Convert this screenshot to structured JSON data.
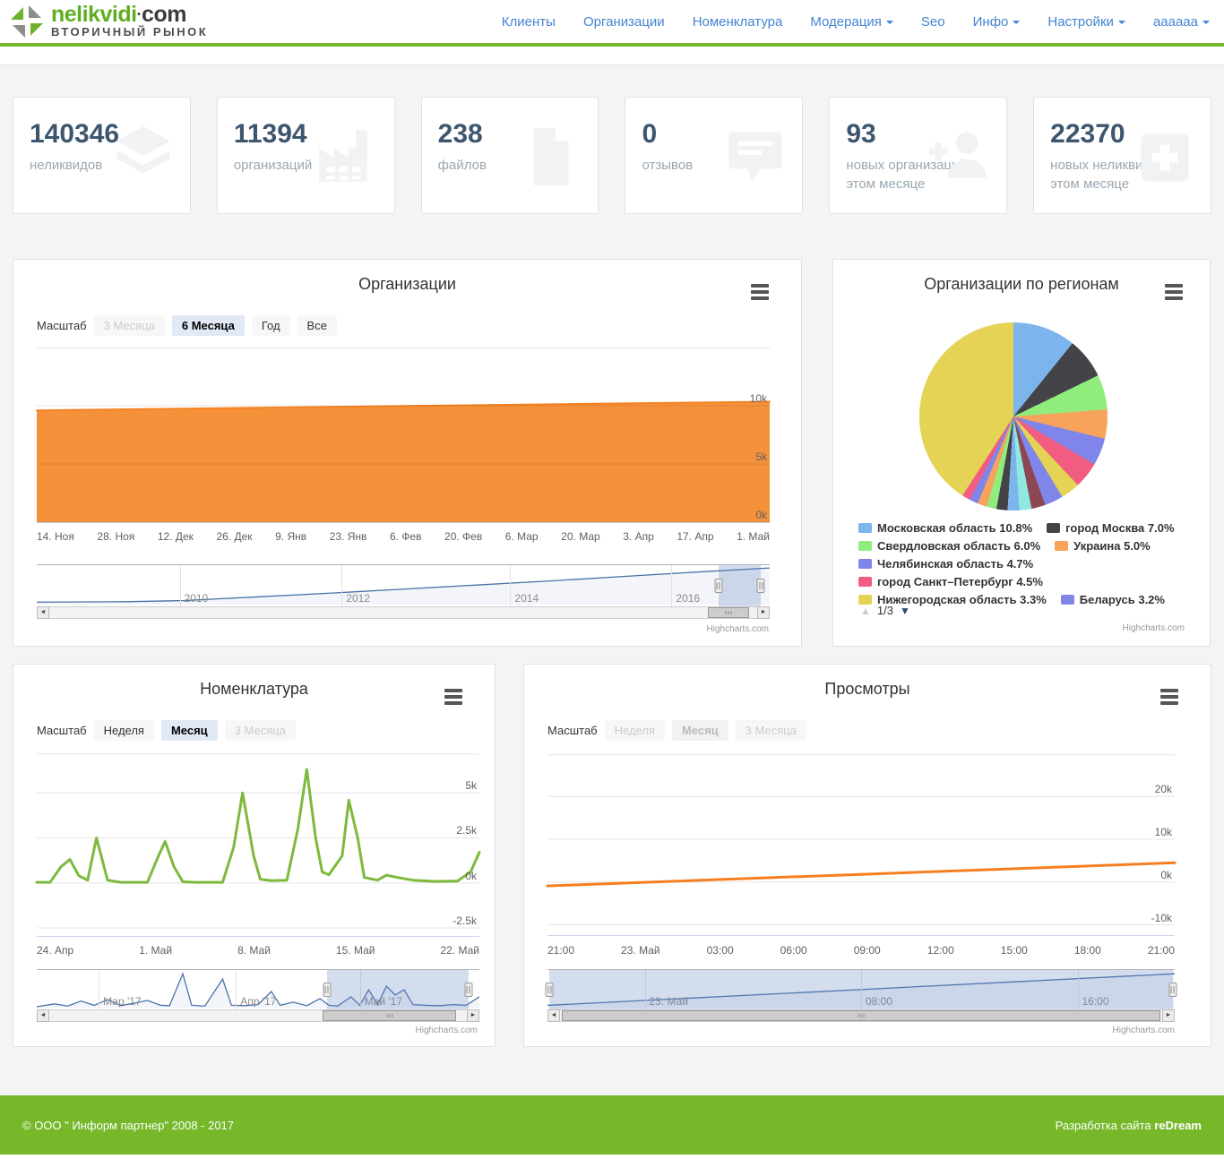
{
  "header": {
    "logo": {
      "brand_green": "nelikvidi",
      "brand_sep": "·",
      "brand_dark": "com",
      "tagline": "ВТОРИЧНЫЙ РЫНОК"
    },
    "nav": [
      {
        "label": "Клиенты",
        "dropdown": false
      },
      {
        "label": "Организации",
        "dropdown": false
      },
      {
        "label": "Номенклатура",
        "dropdown": false
      },
      {
        "label": "Модерация",
        "dropdown": true
      },
      {
        "label": "Seo",
        "dropdown": false
      },
      {
        "label": "Инфо",
        "dropdown": true
      },
      {
        "label": "Настройки",
        "dropdown": true
      },
      {
        "label": "aaaaaa",
        "dropdown": true
      }
    ]
  },
  "stats": [
    {
      "value": "140346",
      "label": "неликвидов",
      "icon": "layers-icon"
    },
    {
      "value": "11394",
      "label": "организаций",
      "icon": "factory-icon"
    },
    {
      "value": "238",
      "label": "файлов",
      "icon": "file-icon"
    },
    {
      "value": "0",
      "label": "отзывов",
      "icon": "comment-icon"
    },
    {
      "value": "93",
      "label": "новых организаций в этом месяце",
      "icon": "user-plus-icon"
    },
    {
      "value": "22370",
      "label": "новых неликвидов в этом месяце",
      "icon": "add-box-icon"
    }
  ],
  "chart_data": [
    {
      "id": "organizations",
      "type": "area",
      "title": "Организации",
      "color": "#f58220",
      "scale_label": "Масштаб",
      "range_buttons": [
        {
          "label": "3 Месяца",
          "state": "disabled"
        },
        {
          "label": "6 Месяца",
          "state": "selected"
        },
        {
          "label": "Год",
          "state": "normal"
        },
        {
          "label": "Все",
          "state": "normal"
        }
      ],
      "x_labels": [
        "14. Ноя",
        "28. Ноя",
        "12. Дек",
        "26. Дек",
        "9. Янв",
        "23. Янв",
        "6. Фев",
        "20. Фев",
        "6. Мар",
        "20. Мар",
        "3. Апр",
        "17. Апр",
        "1. Май"
      ],
      "y_ticks": [
        {
          "v": 0,
          "l": "0k"
        },
        {
          "v": 5000,
          "l": "5k"
        },
        {
          "v": 10000,
          "l": "10k"
        }
      ],
      "y_range": [
        0,
        15000
      ],
      "points": [
        [
          0,
          9600
        ],
        [
          0.2,
          9750
        ],
        [
          0.4,
          9900
        ],
        [
          0.6,
          10050
        ],
        [
          0.8,
          10200
        ],
        [
          1,
          10350
        ]
      ],
      "navigator": {
        "labels": [
          {
            "text": "2010",
            "pos": 0.195
          },
          {
            "text": "2012",
            "pos": 0.416
          },
          {
            "text": "2014",
            "pos": 0.646
          },
          {
            "text": "2016",
            "pos": 0.866
          }
        ],
        "points": [
          [
            0,
            0.06
          ],
          [
            0.12,
            0.07
          ],
          [
            0.2,
            0.1
          ],
          [
            0.3,
            0.2
          ],
          [
            0.4,
            0.3
          ],
          [
            0.5,
            0.41
          ],
          [
            0.6,
            0.52
          ],
          [
            0.7,
            0.63
          ],
          [
            0.8,
            0.75
          ],
          [
            0.9,
            0.87
          ],
          [
            1,
            0.98
          ]
        ],
        "select": [
          0.93,
          0.988
        ]
      },
      "credit": "Highcharts.com"
    },
    {
      "id": "regions",
      "type": "pie",
      "title": "Организации по регионам",
      "pagination": "1/3",
      "slices": [
        {
          "label": "Московская область",
          "value": 10.8,
          "color": "#7cb5ec"
        },
        {
          "label": "город Москва",
          "value": 7.0,
          "color": "#434348"
        },
        {
          "label": "Свердловская область",
          "value": 6.0,
          "color": "#90ed7d"
        },
        {
          "label": "Украина",
          "value": 5.0,
          "color": "#f7a35c"
        },
        {
          "label": "Челябинская область",
          "value": 4.7,
          "color": "#8085e9"
        },
        {
          "label": "город Санкт–Петербург",
          "value": 4.5,
          "color": "#f15c80"
        },
        {
          "label": "Нижегородская область",
          "value": 3.3,
          "color": "#e4d354"
        },
        {
          "label": "Беларусь",
          "value": 3.2,
          "color": "#8085e8"
        },
        {
          "value": 2.4,
          "color": "#8d4653"
        },
        {
          "value": 2.1,
          "color": "#91e8e1"
        },
        {
          "value": 2.0,
          "color": "#7cb5ec"
        },
        {
          "value": 1.9,
          "color": "#434348"
        },
        {
          "value": 1.7,
          "color": "#90ed7d"
        },
        {
          "value": 1.6,
          "color": "#f7a35c"
        },
        {
          "value": 1.5,
          "color": "#8085e9"
        },
        {
          "value": 1.4,
          "color": "#f15c80"
        },
        {
          "value": 40.9,
          "color": "#e4d354"
        }
      ],
      "legend_rows": [
        [
          {
            "label": "Московская область 10.8%",
            "color": "#7cb5ec"
          },
          {
            "label": "город Москва 7.0%",
            "color": "#434348"
          }
        ],
        [
          {
            "label": "Свердловская область 6.0%",
            "color": "#90ed7d"
          },
          {
            "label": "Украина 5.0%",
            "color": "#f7a35c"
          }
        ],
        [
          {
            "label": "Челябинская область 4.7%",
            "color": "#8085e9"
          }
        ],
        [
          {
            "label": "город Санкт–Петербург 4.5%",
            "color": "#f15c80"
          }
        ],
        [
          {
            "label": "Нижегородская область 3.3%",
            "color": "#e4d354"
          },
          {
            "label": "Беларусь 3.2%",
            "color": "#8085e8"
          }
        ]
      ],
      "credit": "Highcharts.com"
    },
    {
      "id": "nomenclature",
      "type": "line",
      "title": "Номенклатура",
      "color": "#7eb93e",
      "scale_label": "Масштаб",
      "range_buttons": [
        {
          "label": "Неделя",
          "state": "normal"
        },
        {
          "label": "Месяц",
          "state": "selected"
        },
        {
          "label": "3 Месяца",
          "state": "disabled"
        }
      ],
      "x_labels": [
        "24. Апр",
        "1. Май",
        "8. Май",
        "15. Май",
        "22. Май"
      ],
      "y_ticks": [
        {
          "v": -2500,
          "l": "-2.5k"
        },
        {
          "v": 0,
          "l": "0k"
        },
        {
          "v": 2500,
          "l": "2.5k"
        },
        {
          "v": 5000,
          "l": "5k"
        }
      ],
      "y_range": [
        -2950,
        7200
      ],
      "points": [
        [
          0,
          30
        ],
        [
          0.03,
          30
        ],
        [
          0.055,
          900
        ],
        [
          0.075,
          1300
        ],
        [
          0.095,
          400
        ],
        [
          0.115,
          150
        ],
        [
          0.135,
          2500
        ],
        [
          0.16,
          150
        ],
        [
          0.19,
          30
        ],
        [
          0.25,
          30
        ],
        [
          0.275,
          1500
        ],
        [
          0.29,
          2300
        ],
        [
          0.31,
          900
        ],
        [
          0.33,
          60
        ],
        [
          0.36,
          30
        ],
        [
          0.42,
          30
        ],
        [
          0.445,
          2000
        ],
        [
          0.465,
          5000
        ],
        [
          0.49,
          1500
        ],
        [
          0.505,
          200
        ],
        [
          0.53,
          120
        ],
        [
          0.565,
          150
        ],
        [
          0.59,
          3000
        ],
        [
          0.61,
          6300
        ],
        [
          0.63,
          2500
        ],
        [
          0.645,
          600
        ],
        [
          0.66,
          450
        ],
        [
          0.69,
          1500
        ],
        [
          0.705,
          4600
        ],
        [
          0.725,
          2500
        ],
        [
          0.74,
          300
        ],
        [
          0.77,
          150
        ],
        [
          0.79,
          430
        ],
        [
          0.815,
          300
        ],
        [
          0.85,
          150
        ],
        [
          0.9,
          80
        ],
        [
          0.95,
          100
        ],
        [
          0.98,
          600
        ],
        [
          1,
          1700
        ]
      ],
      "navigator": {
        "labels": [
          {
            "text": "Мар '17",
            "pos": 0.14
          },
          {
            "text": "Апр '17",
            "pos": 0.45
          },
          {
            "text": "Май '17",
            "pos": 0.73
          }
        ],
        "points": [
          [
            0,
            0.02
          ],
          [
            0.04,
            0.1
          ],
          [
            0.07,
            0.04
          ],
          [
            0.1,
            0.18
          ],
          [
            0.13,
            0.06
          ],
          [
            0.16,
            0.22
          ],
          [
            0.19,
            0.05
          ],
          [
            0.22,
            0.12
          ],
          [
            0.25,
            0.2
          ],
          [
            0.28,
            0.06
          ],
          [
            0.3,
            0.05
          ],
          [
            0.33,
            0.95
          ],
          [
            0.35,
            0.06
          ],
          [
            0.38,
            0.04
          ],
          [
            0.42,
            0.8
          ],
          [
            0.44,
            0.06
          ],
          [
            0.47,
            0.05
          ],
          [
            0.5,
            0.08
          ],
          [
            0.53,
            0.45
          ],
          [
            0.55,
            0.06
          ],
          [
            0.58,
            0.15
          ],
          [
            0.61,
            0.05
          ],
          [
            0.64,
            0.25
          ],
          [
            0.66,
            0.06
          ],
          [
            0.68,
            0.04
          ],
          [
            0.71,
            0.3
          ],
          [
            0.73,
            0.06
          ],
          [
            0.75,
            0.5
          ],
          [
            0.77,
            0.08
          ],
          [
            0.79,
            0.6
          ],
          [
            0.81,
            0.35
          ],
          [
            0.83,
            0.5
          ],
          [
            0.85,
            0.08
          ],
          [
            0.88,
            0.06
          ],
          [
            0.91,
            0.05
          ],
          [
            0.94,
            0.08
          ],
          [
            0.97,
            0.06
          ],
          [
            1,
            0.3
          ]
        ],
        "select": [
          0.655,
          0.975
        ]
      },
      "credit": "Highcharts.com"
    },
    {
      "id": "views",
      "type": "line",
      "title": "Просмотры",
      "color": "#f57f20",
      "scale_label": "Масштаб",
      "range_buttons": [
        {
          "label": "Неделя",
          "state": "disabled"
        },
        {
          "label": "Месяц",
          "state": "selected-disabled"
        },
        {
          "label": "3 Месяца",
          "state": "disabled"
        }
      ],
      "x_labels": [
        "21:00",
        "23. Май",
        "03:00",
        "06:00",
        "09:00",
        "12:00",
        "15:00",
        "18:00",
        "21:00"
      ],
      "y_ticks": [
        {
          "v": -10000,
          "l": "-10k"
        },
        {
          "v": 0,
          "l": "0k"
        },
        {
          "v": 10000,
          "l": "10k"
        },
        {
          "v": 20000,
          "l": "20k"
        }
      ],
      "y_range": [
        -12400,
        29900
      ],
      "points": [
        [
          0,
          -900
        ],
        [
          0.5,
          1800
        ],
        [
          1,
          4500
        ]
      ],
      "navigator": {
        "labels": [
          {
            "text": "23. Май",
            "pos": 0.155
          },
          {
            "text": "08:00",
            "pos": 0.5
          },
          {
            "text": "16:00",
            "pos": 0.845
          }
        ],
        "points": [
          [
            0,
            0.06
          ],
          [
            1,
            0.95
          ]
        ],
        "select": [
          0.003,
          0.997
        ]
      },
      "credit": "Highcharts.com"
    }
  ],
  "footer": {
    "copyright": "© ООО \" Информ партнер\" 2008 - 2017",
    "credit_prefix": "Разработка сайта",
    "credit_brand": "reDream"
  }
}
